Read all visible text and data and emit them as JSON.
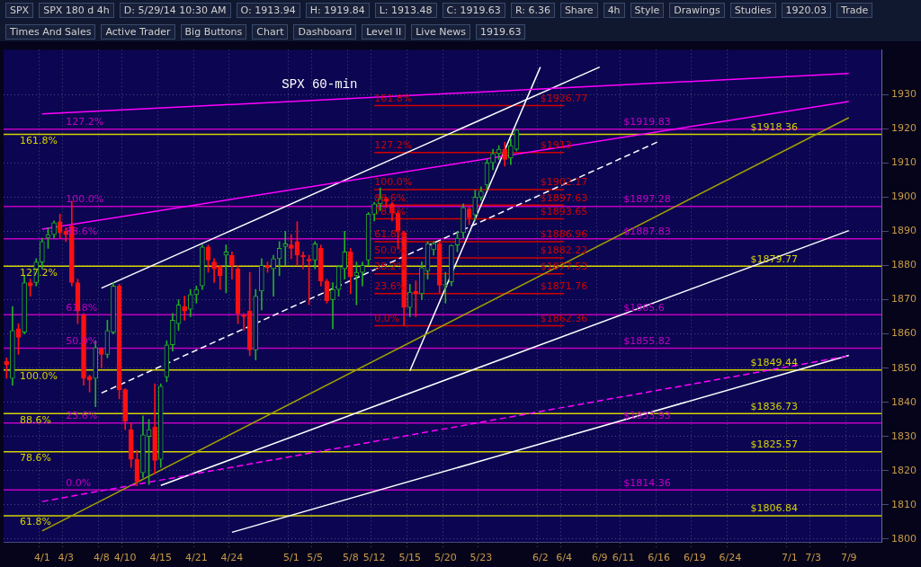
{
  "chart_data": {
    "type": "candlestick",
    "title": "SPX 60-min",
    "categories": [
      null,
      null,
      null,
      null,
      null,
      null,
      "4/1",
      null,
      null,
      null,
      "4/3",
      null,
      null,
      null,
      null,
      null,
      "4/8",
      null,
      null,
      null,
      "4/10",
      null,
      null,
      null,
      null,
      null,
      "4/15",
      null,
      null,
      null,
      null,
      null,
      "4/21",
      null,
      null,
      null,
      null,
      null,
      "4/24",
      null,
      null,
      null,
      null,
      null,
      null,
      null,
      null,
      null,
      "5/1",
      null,
      null,
      null,
      "5/5",
      null,
      null,
      null,
      null,
      null,
      "5/8",
      null,
      null,
      null,
      "5/12",
      null,
      null,
      null,
      null,
      null,
      "5/15",
      null,
      null,
      null,
      null,
      null,
      "5/20",
      null,
      null,
      null,
      null,
      null,
      "5/23",
      null,
      null,
      null,
      null,
      null,
      null,
      null,
      null,
      null,
      "6/2",
      null,
      null,
      null,
      "6/4",
      null,
      null,
      null,
      null,
      null,
      "6/9",
      null,
      null,
      null,
      "6/11",
      null,
      null,
      null,
      null,
      null,
      "6/16",
      null,
      null,
      null,
      null,
      null,
      "6/19",
      null,
      null,
      null,
      null,
      null,
      "6/24",
      null,
      null,
      null,
      null,
      null,
      null,
      null,
      null,
      null,
      "7/1",
      null,
      null,
      null,
      "7/3",
      null,
      null,
      null,
      null,
      null,
      "7/9",
      null,
      null,
      null,
      null,
      null
    ],
    "ohlc": [
      [
        1852,
        1853,
        1847,
        1851
      ],
      [
        1847,
        1868,
        1845,
        1861
      ],
      [
        1861.5,
        1863,
        1854,
        1859
      ],
      [
        1860.5,
        1877,
        1860,
        1875
      ],
      [
        1875,
        1876,
        1871,
        1874
      ],
      [
        1875,
        1882,
        1874,
        1881
      ],
      [
        1881,
        1888,
        1879,
        1887
      ],
      [
        1888,
        1891,
        1885,
        1889
      ],
      [
        1889,
        1893,
        1888,
        1892.5
      ],
      [
        1892.8,
        1895,
        1888,
        1889.6
      ],
      [
        1890,
        1891,
        1887,
        1889
      ],
      [
        1891.5,
        1898.8,
        1874,
        1875
      ],
      [
        1875,
        1876,
        1863,
        1866.7
      ],
      [
        1865.5,
        1866,
        1845,
        1847
      ],
      [
        1847.5,
        1848,
        1843,
        1846.5
      ],
      [
        1847,
        1858,
        1838.7,
        1856
      ],
      [
        1855.6,
        1856,
        1850,
        1854
      ],
      [
        1854,
        1864,
        1853,
        1861
      ],
      [
        1860.5,
        1875,
        1860,
        1874
      ],
      [
        1874,
        1874.5,
        1841,
        1843.7
      ],
      [
        1843.7,
        1844,
        1832,
        1834.5
      ],
      [
        1832,
        1834,
        1821,
        1823.3
      ],
      [
        1823.3,
        1826,
        1815.6,
        1816.9
      ],
      [
        1819.4,
        1836,
        1818,
        1830.5
      ],
      [
        1830,
        1835,
        1816,
        1832
      ],
      [
        1832.8,
        1845.4,
        1819,
        1823
      ],
      [
        1823.3,
        1845.4,
        1821,
        1844.7
      ],
      [
        1847.4,
        1858,
        1846,
        1856.8
      ],
      [
        1856.8,
        1866,
        1855,
        1864
      ],
      [
        1863,
        1870,
        1861,
        1868.5
      ],
      [
        1868,
        1871,
        1864,
        1866.7
      ],
      [
        1867.2,
        1873,
        1865,
        1871.5
      ],
      [
        1871.5,
        1874,
        1869,
        1873
      ],
      [
        1874,
        1886,
        1873,
        1885.4
      ],
      [
        1885.4,
        1886,
        1878,
        1881.6
      ],
      [
        1881,
        1882,
        1875,
        1879
      ],
      [
        1879.7,
        1880,
        1873,
        1877
      ],
      [
        1883,
        1886,
        1872,
        1884
      ],
      [
        1883,
        1884,
        1876,
        1880
      ],
      [
        1879,
        1880,
        1863,
        1866
      ],
      [
        1865.5,
        1866,
        1861,
        1865
      ],
      [
        1866.7,
        1878,
        1853.6,
        1855.3
      ],
      [
        1855.3,
        1873,
        1852.4,
        1871
      ],
      [
        1872.5,
        1882,
        1867,
        1880
      ],
      [
        1880,
        1881,
        1878,
        1879.3
      ],
      [
        1879,
        1883,
        1871,
        1882
      ],
      [
        1882,
        1887,
        1877,
        1885
      ],
      [
        1885.5,
        1890,
        1880,
        1886.3
      ],
      [
        1886,
        1889,
        1882,
        1885
      ],
      [
        1887,
        1892.8,
        1880,
        1883
      ],
      [
        1883,
        1884,
        1879,
        1882.5
      ],
      [
        1881.8,
        1883,
        1868.5,
        1881.3
      ],
      [
        1881.6,
        1887,
        1879,
        1886.3
      ],
      [
        1885,
        1886,
        1874,
        1875.4
      ],
      [
        1875.4,
        1876,
        1869,
        1869.7
      ],
      [
        1870,
        1875,
        1861.5,
        1873
      ],
      [
        1873,
        1880,
        1871,
        1879.7
      ],
      [
        1879,
        1890,
        1876,
        1884
      ],
      [
        1884,
        1885,
        1871.7,
        1876.7
      ],
      [
        1877,
        1881,
        1868.5,
        1878
      ],
      [
        1878,
        1881,
        1874,
        1880
      ],
      [
        1881.6,
        1895.5,
        1880,
        1895
      ],
      [
        1895,
        1898.5,
        1893,
        1898
      ],
      [
        1898,
        1902.7,
        1896,
        1899.5
      ],
      [
        1899.5,
        1900,
        1897,
        1898.7
      ],
      [
        1898,
        1898.5,
        1893,
        1895.3
      ],
      [
        1895.3,
        1896,
        1885,
        1890
      ],
      [
        1889.6,
        1890,
        1862.4,
        1867.7
      ],
      [
        1867.7,
        1874.5,
        1865,
        1872.2
      ],
      [
        1872.5,
        1875.5,
        1865,
        1871.8
      ],
      [
        1871.7,
        1881,
        1870,
        1879.4
      ],
      [
        1878.4,
        1887,
        1876,
        1886.4
      ],
      [
        1884.6,
        1887,
        1883,
        1886.4
      ],
      [
        1886.4,
        1887,
        1872,
        1874.2
      ],
      [
        1874,
        1878,
        1869,
        1874.4
      ],
      [
        1875.2,
        1886,
        1874,
        1885.9
      ],
      [
        1886,
        1890,
        1884,
        1888
      ],
      [
        1889.6,
        1898,
        1888,
        1897
      ],
      [
        1896.5,
        1897,
        1892,
        1894
      ],
      [
        1894.8,
        1902,
        1893,
        1900
      ],
      [
        1900,
        1903,
        1899,
        1901.7
      ],
      [
        1903.5,
        1911,
        1902,
        1910
      ],
      [
        1910,
        1914,
        1908,
        1912.7
      ],
      [
        1912.7,
        1915,
        1911,
        1914
      ],
      [
        1914,
        1916,
        1909,
        1911
      ],
      [
        1911.4,
        1917,
        1909.5,
        1915
      ],
      [
        1913.94,
        1919.84,
        1913.48,
        1919.63
      ],
      null,
      null,
      null,
      null,
      null,
      null,
      null,
      null,
      null,
      null,
      null,
      null,
      null,
      null,
      null,
      null,
      null,
      null,
      null,
      null,
      null,
      null,
      null,
      null,
      null,
      null,
      null,
      null,
      null,
      null,
      null,
      null,
      null,
      null,
      null,
      null,
      null,
      null,
      null,
      null,
      null,
      null,
      null,
      null,
      null,
      null,
      null,
      null,
      null,
      null,
      null,
      null,
      null,
      null,
      null,
      null,
      null,
      null,
      null,
      null,
      null
    ],
    "ylim": [
      1799,
      1943
    ],
    "yticks": [
      1800,
      1810,
      1820,
      1830,
      1840,
      1850,
      1860,
      1870,
      1880,
      1890,
      1900,
      1910,
      1920,
      1930
    ],
    "grid": true,
    "legend": false,
    "series": [
      {
        "type": "line",
        "x": [
          "4/1",
          "7/9"
        ],
        "values": [
          1924.3,
          1936.1
        ],
        "color": "#ff00ff",
        "line_style": "solid"
      },
      {
        "type": "line",
        "x": [
          "4/1",
          "7/9"
        ],
        "values": [
          1890.6,
          1927.9
        ],
        "color": "#ff00ff",
        "line_style": "solid"
      },
      {
        "type": "line",
        "x": [
          "4/1",
          "7/9"
        ],
        "values": [
          1811,
          1853.6
        ],
        "color": "#ff00ff",
        "line_style": "dashed"
      },
      {
        "type": "line",
        "x": [
          "4/8",
          "6/9"
        ],
        "values": [
          1873.4,
          1938
        ],
        "color": "#ffffff",
        "line_style": "solid"
      },
      {
        "type": "line",
        "x": [
          "4/8",
          "6/16"
        ],
        "values": [
          1842.7,
          1916.3
        ],
        "color": "#ffffff",
        "line_style": "dashed"
      },
      {
        "type": "line",
        "x": [
          "4/15",
          "7/9"
        ],
        "values": [
          1815.7,
          1890.2
        ],
        "color": "#ffffff",
        "line_style": "solid"
      },
      {
        "type": "line",
        "x": [
          "4/24",
          "7/9"
        ],
        "values": [
          1802,
          1853.7
        ],
        "color": "#ffffff",
        "line_style": "solid"
      },
      {
        "type": "line",
        "x": [
          "4/1",
          "7/9"
        ],
        "values": [
          1802.4,
          1923.2
        ],
        "color": "#a0a000",
        "line_style": "solid"
      },
      {
        "type": "line",
        "x": [
          "5/15",
          "6/2"
        ],
        "values": [
          1849.2,
          1938
        ],
        "color": "#ffffff",
        "line_style": "solid"
      },
      {
        "type": "line",
        "x": [
          "5/12",
          "6/4"
        ],
        "values": [
          1926.77,
          1926.77
        ],
        "color": "#d00000",
        "line_style": "solid"
      },
      {
        "type": "line",
        "x": [
          "5/12",
          "6/4"
        ],
        "values": [
          1913,
          1913
        ],
        "color": "#d00000",
        "line_style": "solid"
      },
      {
        "type": "line",
        "x": [
          "5/12",
          "6/4"
        ],
        "values": [
          1902.17,
          1902.17
        ],
        "color": "#d00000",
        "line_style": "solid"
      },
      {
        "type": "line",
        "x": [
          "5/12",
          "6/4"
        ],
        "values": [
          1897.63,
          1897.63
        ],
        "color": "#d00000",
        "line_style": "solid"
      },
      {
        "type": "line",
        "x": [
          "5/12",
          "6/4"
        ],
        "values": [
          1893.65,
          1893.65
        ],
        "color": "#d00000",
        "line_style": "solid"
      },
      {
        "type": "line",
        "x": [
          "5/12",
          "6/4"
        ],
        "values": [
          1886.96,
          1886.96
        ],
        "color": "#d00000",
        "line_style": "solid"
      },
      {
        "type": "line",
        "x": [
          "5/12",
          "6/4"
        ],
        "values": [
          1882.22,
          1882.22
        ],
        "color": "#d00000",
        "line_style": "solid"
      },
      {
        "type": "line",
        "x": [
          "5/12",
          "6/4"
        ],
        "values": [
          1877.53,
          1877.53
        ],
        "color": "#d00000",
        "line_style": "solid"
      },
      {
        "type": "line",
        "x": [
          "5/12",
          "6/4"
        ],
        "values": [
          1871.76,
          1871.76
        ],
        "color": "#d00000",
        "line_style": "solid"
      },
      {
        "type": "line",
        "x": [
          "5/12",
          "6/4"
        ],
        "values": [
          1862.36,
          1862.36
        ],
        "color": "#d00000",
        "line_style": "solid"
      }
    ],
    "ref_lines": [
      {
        "axis": "y",
        "value": 1918.36,
        "label": "$1918.36",
        "color": "#d4d400"
      },
      {
        "axis": "y",
        "value": 1879.77,
        "label": "$1879.77",
        "color": "#d4d400"
      },
      {
        "axis": "y",
        "value": 1849.44,
        "label": "$1849.44",
        "color": "#d4d400"
      },
      {
        "axis": "y",
        "value": 1836.73,
        "label": "$1836.73",
        "color": "#d4d400"
      },
      {
        "axis": "y",
        "value": 1825.57,
        "label": "$1825.57",
        "color": "#d4d400"
      },
      {
        "axis": "y",
        "value": 1806.84,
        "label": "$1806.84",
        "color": "#d4d400"
      },
      {
        "axis": "y",
        "value": 1919.83,
        "color": "#c000c0"
      },
      {
        "axis": "y",
        "value": 1897.28,
        "color": "#c000c0"
      },
      {
        "axis": "y",
        "value": 1887.83,
        "color": "#c000c0"
      },
      {
        "axis": "y",
        "value": 1865.6,
        "color": "#c000c0"
      },
      {
        "axis": "y",
        "value": 1855.82,
        "color": "#c000c0"
      },
      {
        "axis": "y",
        "value": 1833.93,
        "color": "#c000c0"
      },
      {
        "axis": "y",
        "value": 1814.36,
        "color": "#c000c0"
      }
    ],
    "annotations": [
      "SPX",
      "SPX 180 d 4h",
      "D: 5/29/14 10:30 AM",
      "O: 1913.94",
      "H: 1919.84",
      "L: 1913.48",
      "C: 1919.63",
      "R: 6.36",
      "Share",
      "4h",
      "Style",
      "Drawings",
      "Studies",
      "1920.03",
      "Trade",
      "Times And Sales",
      "Active Trader",
      "Big Buttons",
      "Chart",
      "Dashboard",
      "Level II",
      "Live News",
      "1919.63",
      {
        "text": "161.8%",
        "y": 1918.36
      },
      {
        "text": "127.2%",
        "y": 1879.77
      },
      {
        "text": "100.0%",
        "y": 1849.44
      },
      {
        "text": "88.6%",
        "y": 1836.73
      },
      {
        "text": "78.6%",
        "y": 1825.57
      },
      {
        "text": "61.8%",
        "y": 1806.84
      },
      {
        "text": "127.2%",
        "x": "4/3",
        "y": 1919.83
      },
      {
        "text": "100.0%",
        "x": "4/3",
        "y": 1897.28
      },
      {
        "text": "88.6%",
        "x": "4/3",
        "y": 1887.83
      },
      {
        "text": "61.8%",
        "x": "4/3",
        "y": 1865.6
      },
      {
        "text": "50.0%",
        "x": "4/3",
        "y": 1855.82
      },
      {
        "text": "23.6%",
        "x": "4/3",
        "y": 1833.93
      },
      {
        "text": "0.0%",
        "x": "4/3",
        "y": 1814.36
      },
      {
        "text": "$1919.83",
        "x": "6/11",
        "y": 1919.83
      },
      {
        "text": "$1897.28",
        "x": "6/11",
        "y": 1897.28
      },
      {
        "text": "$1887.83",
        "x": "6/11",
        "y": 1887.83
      },
      {
        "text": "$1865.6",
        "x": "6/11",
        "y": 1865.6
      },
      {
        "text": "$1855.82",
        "x": "6/11",
        "y": 1855.82
      },
      {
        "text": "$1833.93",
        "x": "6/11",
        "y": 1833.93
      },
      {
        "text": "$1814.36",
        "x": "6/11",
        "y": 1814.36
      },
      {
        "text": "161.8%",
        "x": "5/12",
        "y": 1926.77
      },
      {
        "text": "127.2%",
        "x": "5/12",
        "y": 1913
      },
      {
        "text": "100.0%",
        "x": "5/12",
        "y": 1902.17
      },
      {
        "text": "88.6%",
        "x": "5/12",
        "y": 1897.63
      },
      {
        "text": "78.6%",
        "x": "5/12",
        "y": 1893.65
      },
      {
        "text": "61.8%",
        "x": "5/12",
        "y": 1886.96
      },
      {
        "text": "50.0%",
        "x": "5/12",
        "y": 1882.22
      },
      {
        "text": "38.2%",
        "x": "5/12",
        "y": 1877.53
      },
      {
        "text": "23.6%",
        "x": "5/12",
        "y": 1871.76
      },
      {
        "text": "0.0%",
        "x": "5/12",
        "y": 1862.36
      },
      {
        "text": "$1926.77",
        "x": "6/2",
        "y": 1926.77
      },
      {
        "text": "$1913",
        "x": "6/2",
        "y": 1913
      },
      {
        "text": "$1902.17",
        "x": "6/2",
        "y": 1902.17
      },
      {
        "text": "$1897.63",
        "x": "6/2",
        "y": 1897.63
      },
      {
        "text": "$1893.65",
        "x": "6/2",
        "y": 1893.65
      },
      {
        "text": "$1886.96",
        "x": "6/2",
        "y": 1886.96
      },
      {
        "text": "$1882.22",
        "x": "6/2",
        "y": 1882.22
      },
      {
        "text": "$1877.53",
        "x": "6/2",
        "y": 1877.53
      },
      {
        "text": "$1871.76",
        "x": "6/2",
        "y": 1871.76
      },
      {
        "text": "$1862.36",
        "x": "6/2",
        "y": 1862.36
      }
    ]
  }
}
